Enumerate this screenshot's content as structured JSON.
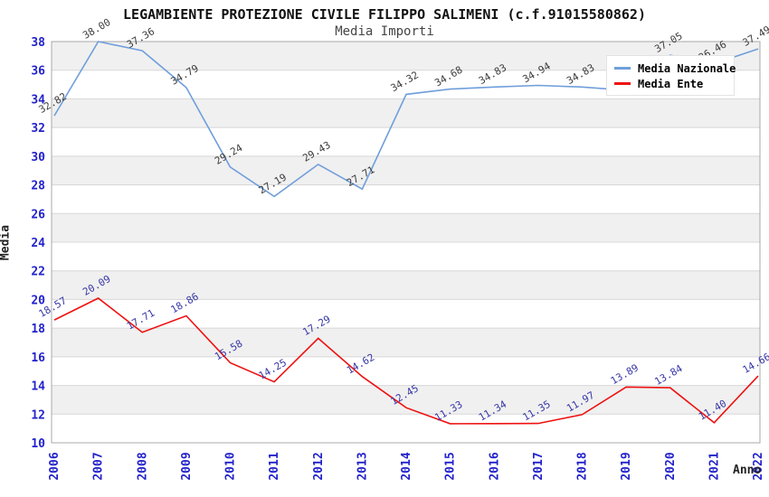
{
  "title": "LEGAMBIENTE PROTEZIONE CIVILE FILIPPO SALIMENI (c.f.91015580862)",
  "subtitle": "Media Importi",
  "legend": {
    "position": "top-right",
    "items": [
      {
        "label": "Media Nazionale",
        "color": "#6f9edb"
      },
      {
        "label": "Media Ente",
        "color": "#ee1111"
      }
    ]
  },
  "axes": {
    "y_title": "Media",
    "x_title": "Anno",
    "y_ticks": [
      38,
      36,
      34,
      32,
      30,
      28,
      26,
      24,
      22,
      20,
      18,
      16,
      14,
      12,
      10
    ],
    "tick_color": "#2222cc"
  },
  "chart_data": {
    "type": "line",
    "title": "LEGAMBIENTE PROTEZIONE CIVILE FILIPPO SALIMENI (c.f.91015580862)",
    "subtitle": "Media Importi",
    "xlabel": "Anno",
    "ylabel": "Media",
    "x": [
      "2006",
      "2007",
      "2008",
      "2009",
      "2010",
      "2011",
      "2012",
      "2013",
      "2014",
      "2015",
      "2016",
      "2017",
      "2018",
      "2019",
      "2020",
      "2021",
      "2022"
    ],
    "ylim": [
      10,
      38
    ],
    "grid": "on",
    "band_color": "#f0f0f0",
    "gridline_color": "#d7d7d7",
    "border_color": "#a8a8a8",
    "legend_position": "top-right",
    "series": [
      {
        "name": "Media Nazionale",
        "color": "#6f9edb",
        "label_color": "#3c3c3c",
        "values": [
          32.82,
          38.0,
          37.36,
          34.79,
          29.24,
          27.19,
          29.43,
          27.71,
          34.32,
          34.68,
          34.83,
          34.94,
          34.83,
          34.6,
          37.05,
          36.46,
          37.49
        ],
        "point_labels": [
          "32.82",
          "38.00",
          "37.36",
          "34.79",
          "29.24",
          "27.19",
          "29.43",
          "27.71",
          "34.32",
          "34.68",
          "34.83",
          "34.94",
          "34.83",
          "",
          "37.05",
          "36.46",
          "37.49"
        ]
      },
      {
        "name": "Media Ente",
        "color": "#ee1111",
        "label_color": "#3636a8",
        "values": [
          18.57,
          20.09,
          17.71,
          18.86,
          15.58,
          14.25,
          17.29,
          14.62,
          12.45,
          11.33,
          11.34,
          11.35,
          11.97,
          13.89,
          13.84,
          11.4,
          14.66
        ],
        "point_labels": [
          "18.57",
          "20.09",
          "17.71",
          "18.86",
          "15.58",
          "14.25",
          "17.29",
          "14.62",
          "12.45",
          "11.33",
          "11.34",
          "11.35",
          "11.97",
          "13.89",
          "13.84",
          "11.40",
          "14.66"
        ]
      }
    ]
  }
}
